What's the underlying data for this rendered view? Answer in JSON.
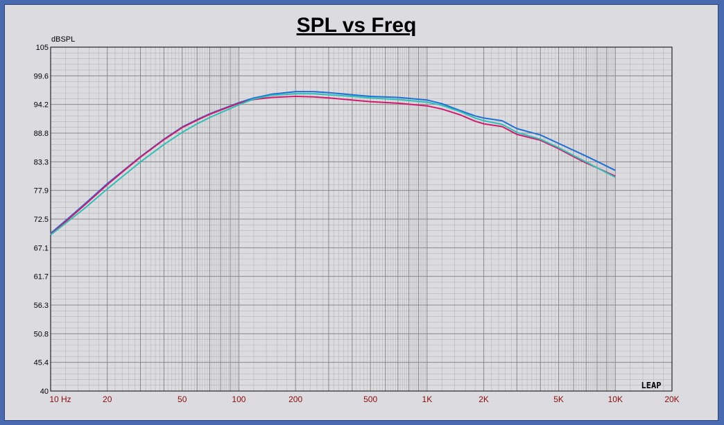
{
  "chart_data": {
    "type": "line",
    "title": "SPL vs Freq",
    "ylabel": "dBSPL",
    "xlabel": "",
    "x_scale": "log",
    "xlim": [
      10,
      20000
    ],
    "ylim": [
      40,
      105
    ],
    "y_ticks": [
      "105",
      "99.6",
      "94.2",
      "88.8",
      "83.3",
      "77.9",
      "72.5",
      "67.1",
      "61.7",
      "56.3",
      "50.8",
      "45.4",
      "40"
    ],
    "x_ticks": [
      {
        "value": 10,
        "label": "10  Hz"
      },
      {
        "value": 20,
        "label": "20"
      },
      {
        "value": 50,
        "label": "50"
      },
      {
        "value": 100,
        "label": "100"
      },
      {
        "value": 200,
        "label": "200"
      },
      {
        "value": 500,
        "label": "500"
      },
      {
        "value": 1000,
        "label": "1K"
      },
      {
        "value": 2000,
        "label": "2K"
      },
      {
        "value": 5000,
        "label": "5K"
      },
      {
        "value": 10000,
        "label": "10K"
      },
      {
        "value": 20000,
        "label": "20K"
      }
    ],
    "grid": true,
    "logo_text": "LEAP",
    "series": [
      {
        "color": "#1e6fd6",
        "x": [
          10,
          12,
          15,
          20,
          25,
          30,
          40,
          50,
          60,
          70,
          80,
          100,
          120,
          150,
          200,
          250,
          300,
          400,
          500,
          700,
          1000,
          1200,
          1500,
          1800,
          2000,
          2500,
          3000,
          4000,
          5000,
          6000,
          7000,
          8000,
          10000
        ],
        "y": [
          69.8,
          72.2,
          75.2,
          79.2,
          82.0,
          84.3,
          87.6,
          89.9,
          91.3,
          92.4,
          93.2,
          94.5,
          95.4,
          96.1,
          96.6,
          96.6,
          96.4,
          96.0,
          95.7,
          95.5,
          95.0,
          94.3,
          93.0,
          92.0,
          91.6,
          91.1,
          89.6,
          88.4,
          86.8,
          85.5,
          84.4,
          83.4,
          81.7
        ]
      },
      {
        "color": "#d01a6e",
        "x": [
          10,
          12,
          15,
          20,
          25,
          30,
          40,
          50,
          60,
          70,
          80,
          100,
          120,
          150,
          200,
          250,
          300,
          400,
          500,
          700,
          1000,
          1200,
          1500,
          1800,
          2000,
          2500,
          3000,
          4000,
          5000,
          6000,
          7000,
          8000,
          10000
        ],
        "y": [
          69.6,
          72.0,
          75.0,
          79.0,
          81.9,
          84.2,
          87.5,
          89.8,
          91.2,
          92.3,
          93.1,
          94.4,
          95.1,
          95.5,
          95.7,
          95.6,
          95.4,
          95.0,
          94.7,
          94.4,
          93.9,
          93.3,
          92.2,
          91.0,
          90.5,
          90.0,
          88.5,
          87.4,
          85.8,
          84.3,
          83.1,
          82.2,
          80.6
        ]
      },
      {
        "color": "#2fbfb7",
        "x": [
          10,
          12,
          15,
          20,
          25,
          30,
          40,
          50,
          60,
          70,
          80,
          100,
          120,
          150,
          200,
          250,
          300,
          400,
          500,
          700,
          1000,
          1200,
          1500,
          1800,
          2000,
          2500,
          3000,
          4000,
          5000,
          6000,
          7000,
          8000,
          10000
        ],
        "y": [
          69.5,
          71.7,
          74.4,
          78.2,
          81.0,
          83.3,
          86.6,
          88.9,
          90.5,
          91.7,
          92.6,
          94.1,
          95.2,
          95.9,
          96.2,
          96.2,
          96.0,
          95.7,
          95.4,
          95.1,
          94.6,
          94.0,
          92.8,
          91.6,
          91.1,
          90.4,
          88.9,
          87.6,
          86.0,
          84.5,
          83.3,
          82.2,
          80.4
        ]
      }
    ]
  }
}
